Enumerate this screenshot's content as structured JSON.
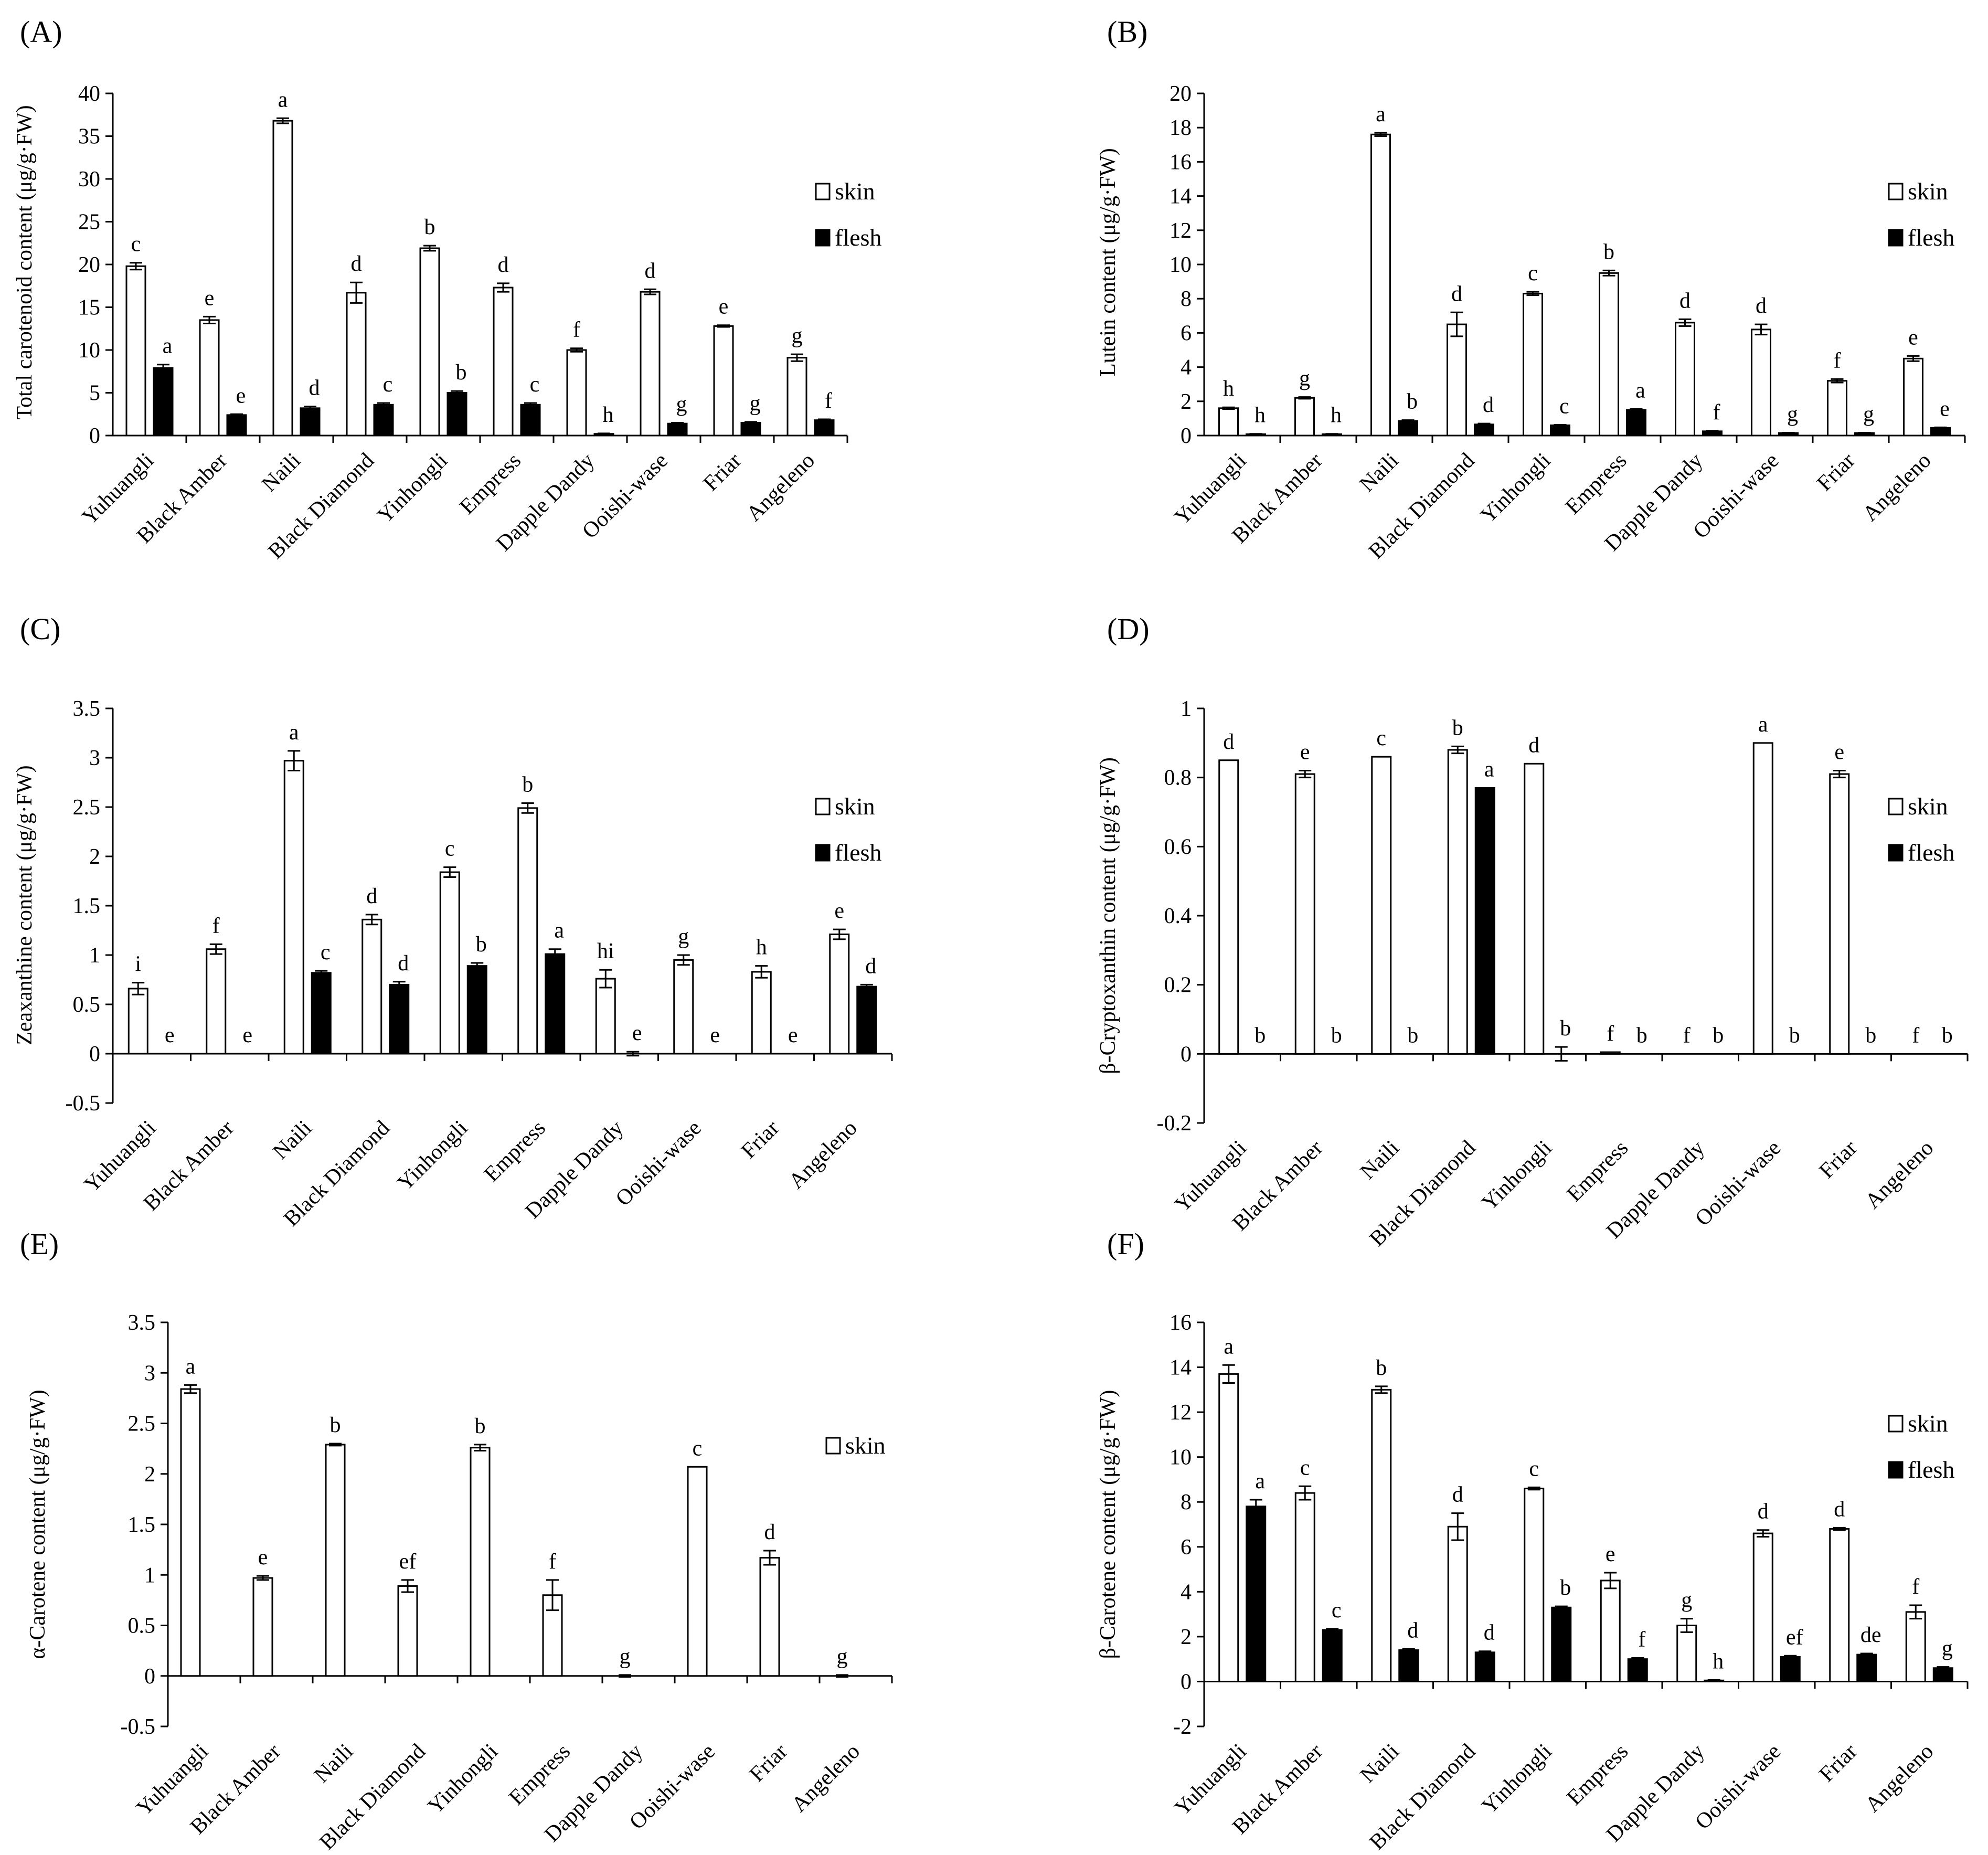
{
  "legend": {
    "skin": "skin",
    "flesh": "flesh"
  },
  "categories": [
    "Yuhuangli",
    "Black Amber",
    "Naili",
    "Black Diamond",
    "Yinhongli",
    "Empress",
    "Dapple Dandy",
    "Ooishi-wase",
    "Friar",
    "Angeleno"
  ],
  "chart_data": [
    {
      "id": "A",
      "label": "(A)",
      "type": "bar",
      "ylabel": "Total carotenoid content (μg/g·FW)",
      "ylim": [
        0,
        40
      ],
      "yticks": [
        0,
        5,
        10,
        15,
        20,
        25,
        30,
        35,
        40
      ],
      "categories": [
        "Yuhuangli",
        "Black Amber",
        "Naili",
        "Black Diamond",
        "Yinhongli",
        "Empress",
        "Dapple Dandy",
        "Ooishi-wase",
        "Friar",
        "Angeleno"
      ],
      "series": [
        {
          "name": "skin",
          "values": [
            19.8,
            13.5,
            36.8,
            16.7,
            21.9,
            17.3,
            10.0,
            16.8,
            12.8,
            9.1
          ],
          "errors": [
            0.4,
            0.4,
            0.3,
            1.2,
            0.3,
            0.5,
            0.2,
            0.3,
            0.1,
            0.4
          ],
          "letters": [
            "c",
            "e",
            "a",
            "d",
            "b",
            "d",
            "f",
            "d",
            "e",
            "g"
          ]
        },
        {
          "name": "flesh",
          "values": [
            7.9,
            2.4,
            3.2,
            3.6,
            5.0,
            3.6,
            0.2,
            1.4,
            1.5,
            1.8
          ],
          "errors": [
            0.4,
            0.1,
            0.2,
            0.2,
            0.2,
            0.2,
            0.05,
            0.1,
            0.1,
            0.1
          ],
          "letters": [
            "a",
            "e",
            "d",
            "c",
            "b",
            "c",
            "h",
            "g",
            "g",
            "f"
          ]
        }
      ],
      "legend_series": [
        "skin",
        "flesh"
      ]
    },
    {
      "id": "B",
      "label": "(B)",
      "type": "bar",
      "ylabel": "Lutein content (μg/g·FW)",
      "ylim": [
        0,
        20
      ],
      "yticks": [
        0,
        2,
        4,
        6,
        8,
        10,
        12,
        14,
        16,
        18,
        20
      ],
      "categories": [
        "Yuhuangli",
        "Black Amber",
        "Naili",
        "Black Diamond",
        "Yinhongli",
        "Empress",
        "Dapple Dandy",
        "Ooishi-wase",
        "Friar",
        "Angeleno"
      ],
      "series": [
        {
          "name": "skin",
          "values": [
            1.6,
            2.2,
            17.6,
            6.5,
            8.3,
            9.5,
            6.6,
            6.2,
            3.2,
            4.5
          ],
          "errors": [
            0.05,
            0.05,
            0.1,
            0.7,
            0.1,
            0.15,
            0.2,
            0.3,
            0.1,
            0.15
          ],
          "letters": [
            "h",
            "g",
            "a",
            "d",
            "c",
            "b",
            "d",
            "d",
            "f",
            "e"
          ]
        },
        {
          "name": "flesh",
          "values": [
            0.08,
            0.08,
            0.85,
            0.65,
            0.6,
            1.5,
            0.25,
            0.15,
            0.15,
            0.45
          ],
          "errors": [
            0.02,
            0.02,
            0.05,
            0.05,
            0.03,
            0.05,
            0.03,
            0.02,
            0.02,
            0.03
          ],
          "letters": [
            "h",
            "h",
            "b",
            "d",
            "c",
            "a",
            "f",
            "g",
            "g",
            "e"
          ]
        }
      ],
      "legend_series": [
        "skin",
        "flesh"
      ]
    },
    {
      "id": "C",
      "label": "(C)",
      "type": "bar",
      "ylabel": "Zeaxanthine content (μg/g·FW)",
      "ylim": [
        -0.5,
        3.5
      ],
      "yticks": [
        -0.5,
        0,
        0.5,
        1,
        1.5,
        2,
        2.5,
        3,
        3.5
      ],
      "categories": [
        "Yuhuangli",
        "Black Amber",
        "Naili",
        "Black Diamond",
        "Yinhongli",
        "Empress",
        "Dapple Dandy",
        "Ooishi-wase",
        "Friar",
        "Angeleno"
      ],
      "series": [
        {
          "name": "skin",
          "values": [
            0.66,
            1.06,
            2.97,
            1.36,
            1.84,
            2.49,
            0.76,
            0.95,
            0.83,
            1.21
          ],
          "errors": [
            0.06,
            0.05,
            0.1,
            0.05,
            0.05,
            0.05,
            0.09,
            0.05,
            0.06,
            0.05
          ],
          "letters": [
            "i",
            "f",
            "a",
            "d",
            "c",
            "b",
            "hi",
            "g",
            "h",
            "e"
          ]
        },
        {
          "name": "flesh",
          "values": [
            0,
            0,
            0.82,
            0.7,
            0.89,
            1.01,
            0,
            0,
            0,
            0.68
          ],
          "errors": [
            0,
            0,
            0.02,
            0.03,
            0.03,
            0.05,
            0.02,
            0,
            0,
            0.02
          ],
          "letters": [
            "e",
            "e",
            "c",
            "d",
            "b",
            "a",
            "e",
            "e",
            "e",
            "d"
          ]
        }
      ],
      "legend_series": [
        "skin",
        "flesh"
      ]
    },
    {
      "id": "D",
      "label": "(D)",
      "type": "bar",
      "ylabel": "β-Cryptoxanthin content (μg/g·FW)",
      "ylim": [
        -0.2,
        1.0
      ],
      "yticks": [
        -0.2,
        0,
        0.2,
        0.4,
        0.6,
        0.8,
        1
      ],
      "categories": [
        "Yuhuangli",
        "Black Amber",
        "Naili",
        "Black Diamond",
        "Yinhongli",
        "Empress",
        "Dapple Dandy",
        "Ooishi-wase",
        "Friar",
        "Angeleno"
      ],
      "series": [
        {
          "name": "skin",
          "values": [
            0.85,
            0.81,
            0.86,
            0.88,
            0.84,
            0.005,
            0,
            0.9,
            0.81,
            0
          ],
          "errors": [
            0,
            0.01,
            0,
            0.01,
            0,
            0,
            0,
            0,
            0.01,
            0
          ],
          "letters": [
            "d",
            "e",
            "c",
            "b",
            "d",
            "f",
            "f",
            "a",
            "e",
            "f"
          ]
        },
        {
          "name": "flesh",
          "values": [
            0,
            0,
            0,
            0.77,
            0,
            0,
            0,
            0,
            0,
            0
          ],
          "errors": [
            0,
            0,
            0,
            0,
            0.02,
            0,
            0,
            0,
            0,
            0
          ],
          "letters": [
            "b",
            "b",
            "b",
            "a",
            "b",
            "b",
            "b",
            "b",
            "b",
            "b"
          ]
        }
      ],
      "legend_series": [
        "skin",
        "flesh"
      ]
    },
    {
      "id": "E",
      "label": "(E)",
      "type": "bar",
      "ylabel": "α-Carotene content (μg/g·FW)",
      "ylim": [
        -0.5,
        3.5
      ],
      "yticks": [
        -0.5,
        0,
        0.5,
        1,
        1.5,
        2,
        2.5,
        3,
        3.5
      ],
      "categories": [
        "Yuhuangli",
        "Black Amber",
        "Naili",
        "Black Diamond",
        "Yinhongli",
        "Empress",
        "Dapple Dandy",
        "Ooishi-wase",
        "Friar",
        "Angeleno"
      ],
      "series": [
        {
          "name": "skin",
          "values": [
            2.84,
            0.97,
            2.29,
            0.89,
            2.26,
            0.8,
            0,
            2.07,
            1.17,
            0
          ],
          "errors": [
            0.04,
            0.02,
            0.01,
            0.06,
            0.03,
            0.15,
            0.01,
            0,
            0.07,
            0.01
          ],
          "letters": [
            "a",
            "e",
            "b",
            "ef",
            "b",
            "f",
            "g",
            "c",
            "d",
            "g"
          ]
        }
      ],
      "legend_series": [
        "skin"
      ]
    },
    {
      "id": "F",
      "label": "(F)",
      "type": "bar",
      "ylabel": "β-Carotene content (μg/g·FW)",
      "ylim": [
        -2,
        16
      ],
      "yticks": [
        -2,
        0,
        2,
        4,
        6,
        8,
        10,
        12,
        14,
        16
      ],
      "categories": [
        "Yuhuangli",
        "Black Amber",
        "Naili",
        "Black Diamond",
        "Yinhongli",
        "Empress",
        "Dapple Dandy",
        "Ooishi-wase",
        "Friar",
        "Angeleno"
      ],
      "series": [
        {
          "name": "skin",
          "values": [
            13.7,
            8.4,
            13.0,
            6.9,
            8.6,
            4.5,
            2.5,
            6.6,
            6.8,
            3.1
          ],
          "errors": [
            0.4,
            0.3,
            0.15,
            0.6,
            0.05,
            0.35,
            0.3,
            0.15,
            0.05,
            0.3
          ],
          "letters": [
            "a",
            "c",
            "b",
            "d",
            "c",
            "e",
            "g",
            "d",
            "d",
            "f"
          ]
        },
        {
          "name": "flesh",
          "values": [
            7.8,
            2.3,
            1.4,
            1.3,
            3.3,
            1.0,
            0.05,
            1.1,
            1.2,
            0.6
          ],
          "errors": [
            0.3,
            0.05,
            0.05,
            0.05,
            0.05,
            0.05,
            0.02,
            0.05,
            0.05,
            0.05
          ],
          "letters": [
            "a",
            "c",
            "d",
            "d",
            "b",
            "f",
            "h",
            "ef",
            "de",
            "g"
          ]
        }
      ],
      "legend_series": [
        "skin",
        "flesh"
      ]
    }
  ]
}
